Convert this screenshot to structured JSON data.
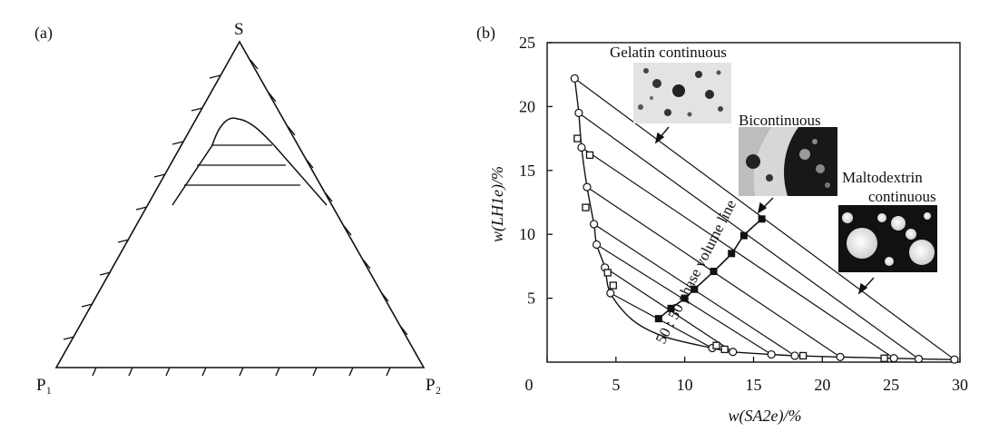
{
  "panel_a": {
    "label": "(a)",
    "vertex_top": "S",
    "vertex_left": "P₁",
    "vertex_right": "P₂"
  },
  "panel_b": {
    "label": "(b)",
    "annotations": {
      "gelatin": "Gelatin continuous",
      "bicontinuous": "Bicontinuous",
      "malto_line1": "Maltodextrin",
      "malto_line2": "continuous",
      "phase_line": "50 : 50 phase volume line"
    }
  },
  "chart_data": {
    "type": "scatter",
    "title": "",
    "xlabel": "w(SA2e)/%",
    "ylabel": "w(LH1e)/%",
    "xlim": [
      0,
      30
    ],
    "ylim": [
      0,
      25
    ],
    "xticks": [
      0,
      5,
      10,
      15,
      20,
      25,
      30
    ],
    "yticks": [
      5,
      10,
      15,
      20,
      25
    ],
    "grid": false,
    "legend": "none",
    "series": [
      {
        "marker": "open-circle",
        "points": [
          [
            2.0,
            22.2
          ],
          [
            2.3,
            19.5
          ],
          [
            2.5,
            16.8
          ],
          [
            2.9,
            13.7
          ],
          [
            3.4,
            10.8
          ],
          [
            3.6,
            9.2
          ],
          [
            4.2,
            7.4
          ],
          [
            4.6,
            5.4
          ],
          [
            12.0,
            1.1
          ],
          [
            13.5,
            0.8
          ],
          [
            16.3,
            0.6
          ],
          [
            18.0,
            0.5
          ],
          [
            21.3,
            0.4
          ],
          [
            25.2,
            0.3
          ],
          [
            27.0,
            0.25
          ],
          [
            29.6,
            0.2
          ]
        ]
      },
      {
        "marker": "open-square",
        "points": [
          [
            2.2,
            17.5
          ],
          [
            3.1,
            16.2
          ],
          [
            2.8,
            12.1
          ],
          [
            4.4,
            7.0
          ],
          [
            4.8,
            6.0
          ],
          [
            12.3,
            1.3
          ],
          [
            12.9,
            1.0
          ],
          [
            18.6,
            0.5
          ],
          [
            24.5,
            0.3
          ]
        ]
      },
      {
        "marker": "filled-square",
        "points": [
          [
            8.1,
            3.4
          ],
          [
            9.0,
            4.2
          ],
          [
            10.0,
            5.0
          ],
          [
            10.7,
            5.7
          ],
          [
            12.1,
            7.1
          ],
          [
            13.4,
            8.5
          ],
          [
            14.3,
            9.9
          ],
          [
            15.6,
            11.2
          ]
        ]
      }
    ],
    "tie_lines": [
      [
        [
          2.0,
          22.2
        ],
        [
          29.6,
          0.2
        ]
      ],
      [
        [
          2.3,
          19.5
        ],
        [
          27.0,
          0.25
        ]
      ],
      [
        [
          2.5,
          16.8
        ],
        [
          25.2,
          0.3
        ]
      ],
      [
        [
          2.9,
          13.7
        ],
        [
          21.3,
          0.4
        ]
      ],
      [
        [
          3.4,
          10.8
        ],
        [
          18.0,
          0.5
        ]
      ],
      [
        [
          3.6,
          9.2
        ],
        [
          16.3,
          0.6
        ]
      ],
      [
        [
          4.2,
          7.4
        ],
        [
          13.5,
          0.8
        ]
      ],
      [
        [
          4.6,
          5.4
        ],
        [
          12.0,
          1.1
        ]
      ]
    ],
    "binodal": [
      [
        2.0,
        22.2
      ],
      [
        2.3,
        19.5
      ],
      [
        2.5,
        16.8
      ],
      [
        2.9,
        13.7
      ],
      [
        3.4,
        10.8
      ],
      [
        3.6,
        9.2
      ],
      [
        4.2,
        7.4
      ],
      [
        4.6,
        5.4
      ],
      [
        6.2,
        3.3
      ],
      [
        8.5,
        2.0
      ],
      [
        12.0,
        1.1
      ],
      [
        13.5,
        0.8
      ],
      [
        16.3,
        0.6
      ],
      [
        18.0,
        0.5
      ],
      [
        21.3,
        0.4
      ],
      [
        25.2,
        0.3
      ],
      [
        27.0,
        0.25
      ],
      [
        29.6,
        0.2
      ]
    ],
    "phase_volume_line": [
      [
        8.1,
        3.4
      ],
      [
        9.0,
        4.2
      ],
      [
        10.0,
        5.0
      ],
      [
        10.7,
        5.7
      ],
      [
        12.1,
        7.1
      ],
      [
        13.4,
        8.5
      ],
      [
        14.3,
        9.9
      ],
      [
        15.6,
        11.2
      ]
    ]
  }
}
